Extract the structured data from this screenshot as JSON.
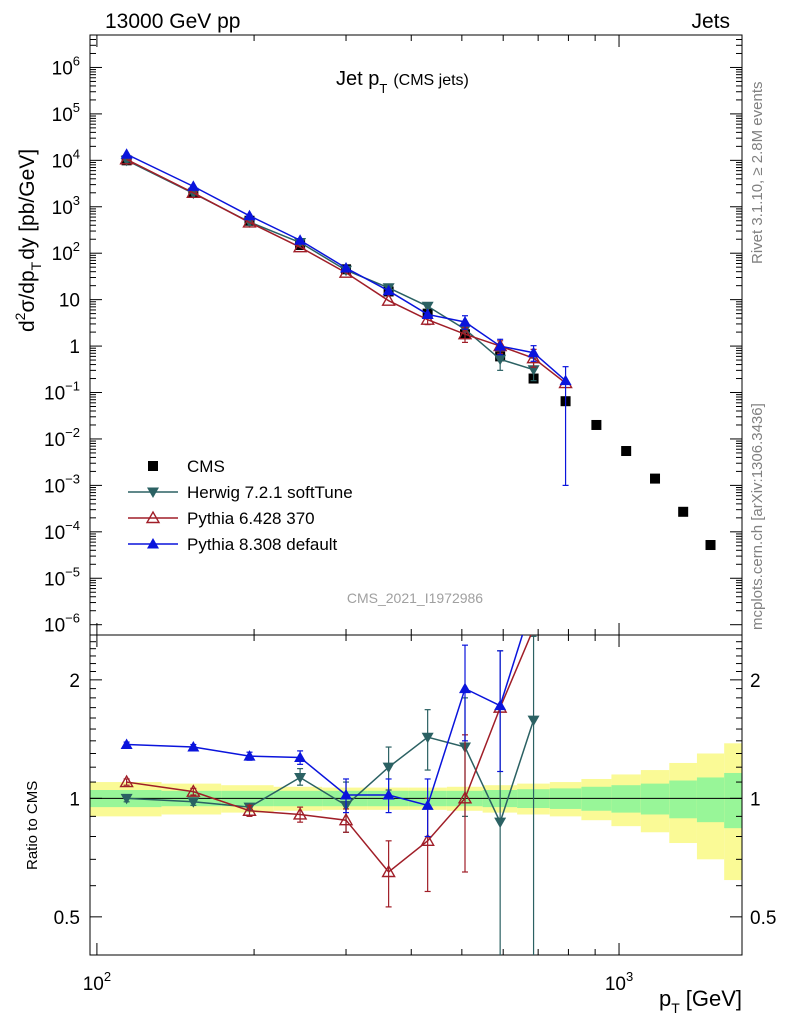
{
  "header": {
    "left": "13000 GeV pp",
    "right": "Jets"
  },
  "side": {
    "rivet": "Rivet 3.1.10, ≥ 2.8M events",
    "mcplots": "mcplots.cern.ch [arXiv:1306.3436]"
  },
  "chart_data": {
    "type": "scatter",
    "title_main": "Jet p",
    "title_sub": "T",
    "title_paren": "(CMS jets)",
    "watermark": "CMS_2021_I1972986",
    "ylabel_top": "d²σ/dp_T dy [pb/GeV]",
    "ylabel_top_parts": {
      "a": "d",
      "sup": "2",
      "b": "σ/dp",
      "sub": "T",
      "c": "dy [pb/GeV]"
    },
    "ylabel_bottom": "Ratio to CMS",
    "xlabel_parts": {
      "a": "p",
      "sub": "T",
      "b": "[GeV]"
    },
    "x_scale": "log",
    "y_scale_top": "log",
    "y_scale_bottom": "log",
    "xlim": [
      97,
      1720
    ],
    "ylim_top": [
      6e-07,
      5000000.0
    ],
    "ylim_bottom": [
      0.4,
      2.6
    ],
    "x_ticklabels": [
      {
        "base": "10",
        "exp": "2"
      },
      {
        "base": "10",
        "exp": "3"
      }
    ],
    "y_ticklabels_top": [
      {
        "v": 1000000.0,
        "base": "10",
        "exp": "6"
      },
      {
        "v": 100000.0,
        "base": "10",
        "exp": "5"
      },
      {
        "v": 10000.0,
        "base": "10",
        "exp": "4"
      },
      {
        "v": 1000.0,
        "base": "10",
        "exp": "3"
      },
      {
        "v": 100.0,
        "base": "10",
        "exp": "2"
      },
      {
        "v": 10,
        "base": "10",
        "exp": ""
      },
      {
        "v": 1,
        "base": "1",
        "exp": ""
      },
      {
        "v": 0.1,
        "base": "10",
        "exp": "−1"
      },
      {
        "v": 0.01,
        "base": "10",
        "exp": "−2"
      },
      {
        "v": 0.001,
        "base": "10",
        "exp": "−3"
      },
      {
        "v": 0.0001,
        "base": "10",
        "exp": "−4"
      },
      {
        "v": 1e-05,
        "base": "10",
        "exp": "−5"
      },
      {
        "v": 1e-06,
        "base": "10",
        "exp": "−6"
      }
    ],
    "y_ticklabels_bottom": [
      {
        "v": 2,
        "label": "2"
      },
      {
        "v": 1,
        "label": "1"
      },
      {
        "v": 0.5,
        "label": "0.5"
      }
    ],
    "legend_position": "bottom-left",
    "series": [
      {
        "name": "CMS",
        "color": "#000000",
        "marker": "square",
        "points": [
          [
            114,
            10000
          ],
          [
            153,
            2000
          ],
          [
            196,
            500
          ],
          [
            245,
            150
          ],
          [
            300,
            45
          ],
          [
            362,
            15
          ],
          [
            430,
            5
          ],
          [
            507,
            1.8
          ],
          [
            592,
            0.6
          ],
          [
            686,
            0.2
          ],
          [
            790,
            0.065
          ],
          [
            905,
            0.02
          ],
          [
            1032,
            0.0055
          ],
          [
            1172,
            0.0014
          ],
          [
            1327,
            0.00027
          ],
          [
            1497,
            5.2e-05
          ]
        ]
      },
      {
        "name": "Herwig 7.2.1 softTune",
        "color": "#2b6163",
        "marker": "triangle-down",
        "points": [
          [
            114,
            10000
          ],
          [
            153,
            1950
          ],
          [
            196,
            470
          ],
          [
            245,
            170
          ],
          [
            300,
            43
          ],
          [
            362,
            18
          ],
          [
            430,
            7.2
          ],
          [
            507,
            2.3
          ],
          [
            592,
            0.52
          ],
          [
            686,
            0.31
          ]
        ],
        "errors": [
          [
            114,
            0,
            0
          ],
          [
            153,
            0,
            0
          ],
          [
            196,
            0,
            0
          ],
          [
            245,
            0,
            0
          ],
          [
            300,
            0,
            0
          ],
          [
            362,
            0,
            0
          ],
          [
            430,
            0,
            0
          ],
          [
            507,
            0,
            0
          ],
          [
            592,
            0.28,
            0.22
          ],
          [
            686,
            0.24,
            0.13
          ]
        ],
        "ratio": [
          [
            114,
            1.0
          ],
          [
            153,
            0.98
          ],
          [
            196,
            0.95
          ],
          [
            245,
            1.13
          ],
          [
            300,
            0.96
          ],
          [
            362,
            1.2
          ],
          [
            430,
            1.43
          ],
          [
            507,
            1.35
          ],
          [
            592,
            0.87
          ],
          [
            686,
            1.58
          ]
        ],
        "ratio_err": [
          [
            114,
            0.02,
            0.02
          ],
          [
            153,
            0.02,
            0.02
          ],
          [
            196,
            0.02,
            0.02
          ],
          [
            245,
            0.06,
            0.05
          ],
          [
            300,
            0.14,
            0.14
          ],
          [
            362,
            0.15,
            0.15
          ],
          [
            430,
            0.25,
            0.25
          ],
          [
            507,
            0.45,
            0.45
          ],
          [
            592,
            1.5,
            0.6
          ],
          [
            686,
            1.0,
            1.2
          ]
        ]
      },
      {
        "name": "Pythia 6.428 370",
        "color": "#a01e28",
        "marker": "triangle-up-open",
        "points": [
          [
            114,
            10500
          ],
          [
            153,
            2000
          ],
          [
            196,
            460
          ],
          [
            245,
            135
          ],
          [
            300,
            38
          ],
          [
            362,
            9.5
          ],
          [
            430,
            3.7
          ],
          [
            507,
            1.8
          ],
          [
            592,
            1.0
          ],
          [
            686,
            0.55
          ],
          [
            790,
            0.16
          ]
        ],
        "errors": [
          [
            114,
            0,
            0
          ],
          [
            153,
            0,
            0
          ],
          [
            196,
            0,
            0
          ],
          [
            245,
            0,
            0
          ],
          [
            300,
            0,
            0
          ],
          [
            362,
            0,
            0
          ],
          [
            430,
            1.0,
            0.8
          ],
          [
            507,
            0.7,
            0.6
          ],
          [
            592,
            0.3,
            0.3
          ],
          [
            686,
            0.3,
            0.2
          ],
          [
            790,
            0,
            0
          ]
        ],
        "ratio": [
          [
            114,
            1.1
          ],
          [
            153,
            1.04
          ],
          [
            196,
            0.93
          ],
          [
            245,
            0.91
          ],
          [
            300,
            0.88
          ],
          [
            362,
            0.65
          ],
          [
            430,
            0.78
          ],
          [
            507,
            1.0
          ],
          [
            592,
            1.7
          ],
          [
            686,
            2.7
          ]
        ],
        "ratio_err": [
          [
            114,
            0.02,
            0.02
          ],
          [
            153,
            0.02,
            0.02
          ],
          [
            196,
            0.03,
            0.03
          ],
          [
            245,
            0.04,
            0.04
          ],
          [
            300,
            0.06,
            0.06
          ],
          [
            362,
            0.13,
            0.12
          ],
          [
            430,
            0.22,
            0.2
          ],
          [
            507,
            0.45,
            0.35
          ],
          [
            592,
            0,
            0
          ],
          [
            686,
            0,
            0
          ]
        ]
      },
      {
        "name": "Pythia 8.308 default",
        "color": "#0a14dc",
        "marker": "triangle-up",
        "points": [
          [
            114,
            13500
          ],
          [
            153,
            2750
          ],
          [
            196,
            640
          ],
          [
            245,
            190
          ],
          [
            300,
            48
          ],
          [
            362,
            15.5
          ],
          [
            430,
            4.8
          ],
          [
            507,
            3.3
          ],
          [
            592,
            1.0
          ],
          [
            686,
            0.72
          ],
          [
            790,
            0.18
          ]
        ],
        "errors": [
          [
            114,
            0,
            0
          ],
          [
            153,
            0,
            0
          ],
          [
            196,
            0,
            0
          ],
          [
            245,
            0,
            0
          ],
          [
            300,
            0,
            0
          ],
          [
            362,
            0,
            0
          ],
          [
            430,
            0,
            0
          ],
          [
            507,
            1.2,
            1.0
          ],
          [
            592,
            0.4,
            0.35
          ],
          [
            686,
            0.3,
            0.25
          ],
          [
            790,
            0.18,
            0.179
          ]
        ],
        "ratio": [
          [
            114,
            1.37
          ],
          [
            153,
            1.35
          ],
          [
            196,
            1.28
          ],
          [
            245,
            1.27
          ],
          [
            300,
            1.02
          ],
          [
            362,
            1.02
          ],
          [
            430,
            0.96
          ],
          [
            507,
            1.9
          ],
          [
            592,
            1.72
          ]
        ],
        "ratio_err": [
          [
            114,
            0.02,
            0.02
          ],
          [
            153,
            0.02,
            0.02
          ],
          [
            196,
            0.03,
            0.03
          ],
          [
            245,
            0.05,
            0.05
          ],
          [
            300,
            0.1,
            0.1
          ],
          [
            362,
            0.1,
            0.1
          ],
          [
            430,
            0.16,
            0.16
          ],
          [
            507,
            0.55,
            0.5
          ],
          [
            592,
            0.65,
            0.55
          ]
        ],
        "ratio_extra_segment": [
          [
            592,
            1.72
          ],
          [
            686,
            3.2
          ]
        ]
      }
    ],
    "ratio_bands": {
      "edges": [
        97,
        133,
        173,
        218,
        270,
        330,
        395,
        468,
        548,
        638,
        737,
        847,
        967,
        1101,
        1248,
        1410,
        1590,
        1720
      ],
      "green_half_width": [
        0.05,
        0.045,
        0.045,
        0.045,
        0.045,
        0.045,
        0.045,
        0.045,
        0.05,
        0.055,
        0.06,
        0.07,
        0.08,
        0.09,
        0.11,
        0.13,
        0.16
      ],
      "yellow_half_width": [
        0.1,
        0.09,
        0.08,
        0.07,
        0.065,
        0.065,
        0.065,
        0.07,
        0.08,
        0.09,
        0.1,
        0.12,
        0.15,
        0.18,
        0.23,
        0.3,
        0.38
      ],
      "green_color": "#98f698",
      "yellow_color": "#fafa96"
    }
  }
}
